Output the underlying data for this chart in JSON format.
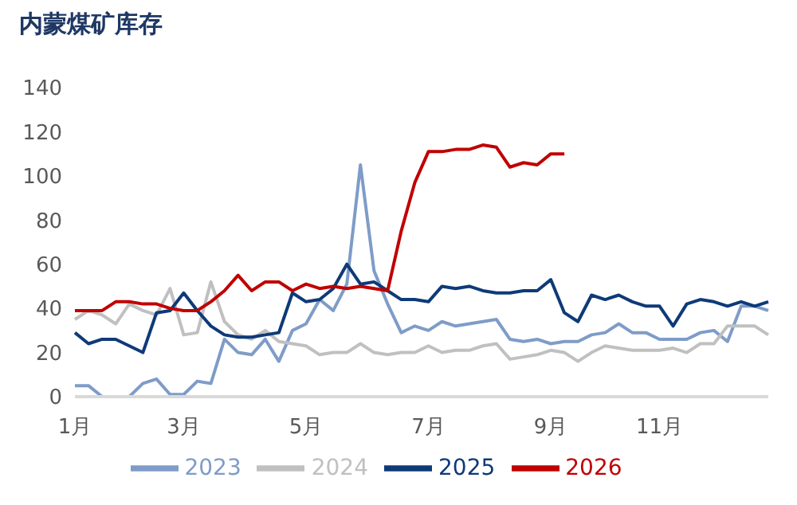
{
  "chart_data": {
    "type": "line",
    "title": "内蒙煤矿库存",
    "categories": [
      "1月",
      null,
      null,
      null,
      null,
      null,
      null,
      null,
      "3月",
      null,
      null,
      null,
      null,
      null,
      null,
      null,
      null,
      "5月",
      null,
      null,
      null,
      null,
      null,
      null,
      null,
      null,
      "7月",
      null,
      null,
      null,
      null,
      null,
      null,
      null,
      null,
      "9月",
      null,
      null,
      null,
      null,
      null,
      null,
      null,
      "11月",
      null,
      null,
      null,
      null,
      null,
      null,
      null,
      null
    ],
    "series": [
      {
        "name": "2023",
        "color": "#7f9cc8",
        "values": [
          5,
          5,
          0,
          0,
          0,
          6,
          8,
          1,
          1,
          7,
          6,
          26,
          20,
          19,
          26,
          16,
          30,
          33,
          44,
          39,
          51,
          105,
          57,
          42,
          29,
          32,
          30,
          34,
          32,
          33,
          34,
          35,
          26,
          25,
          26,
          24,
          25,
          25,
          28,
          29,
          33,
          29,
          29,
          26,
          26,
          26,
          29,
          30,
          25,
          41,
          41,
          39
        ]
      },
      {
        "name": "2024",
        "color": "#c0c0c0",
        "values": [
          35,
          39,
          37,
          33,
          42,
          39,
          37,
          49,
          28,
          29,
          52,
          34,
          28,
          26,
          30,
          25,
          24,
          23,
          19,
          20,
          20,
          24,
          20,
          19,
          20,
          20,
          23,
          20,
          21,
          21,
          23,
          24,
          17,
          18,
          19,
          21,
          20,
          16,
          20,
          23,
          22,
          21,
          21,
          21,
          22,
          20,
          24,
          24,
          32,
          32,
          32,
          28
        ]
      },
      {
        "name": "2025",
        "color": "#0e3a78",
        "values": [
          29,
          24,
          26,
          26,
          23,
          20,
          38,
          39,
          47,
          39,
          32,
          28,
          27,
          27,
          28,
          29,
          47,
          43,
          44,
          49,
          60,
          51,
          52,
          48,
          44,
          44,
          43,
          50,
          49,
          50,
          48,
          47,
          47,
          48,
          48,
          53,
          38,
          34,
          46,
          44,
          46,
          43,
          41,
          41,
          32,
          42,
          44,
          43,
          41,
          43,
          41,
          43
        ]
      },
      {
        "name": "2026",
        "color": "#c00000",
        "values": [
          39,
          39,
          39,
          43,
          43,
          42,
          42,
          40,
          39,
          39,
          43,
          48,
          55,
          48,
          52,
          52,
          48,
          51,
          49,
          50,
          49,
          50,
          49,
          48,
          75,
          97,
          111,
          111,
          112,
          112,
          114,
          113,
          104,
          106,
          105,
          110,
          110,
          null,
          null,
          null,
          null,
          null,
          null,
          null,
          null,
          null,
          null,
          null,
          null,
          null,
          null,
          null
        ]
      }
    ],
    "ylim": [
      0,
      140
    ],
    "yticks": [
      0,
      20,
      40,
      60,
      80,
      100,
      120,
      140
    ],
    "grid": false,
    "legend": "bottom",
    "marker": "none",
    "line_style": "solid"
  }
}
